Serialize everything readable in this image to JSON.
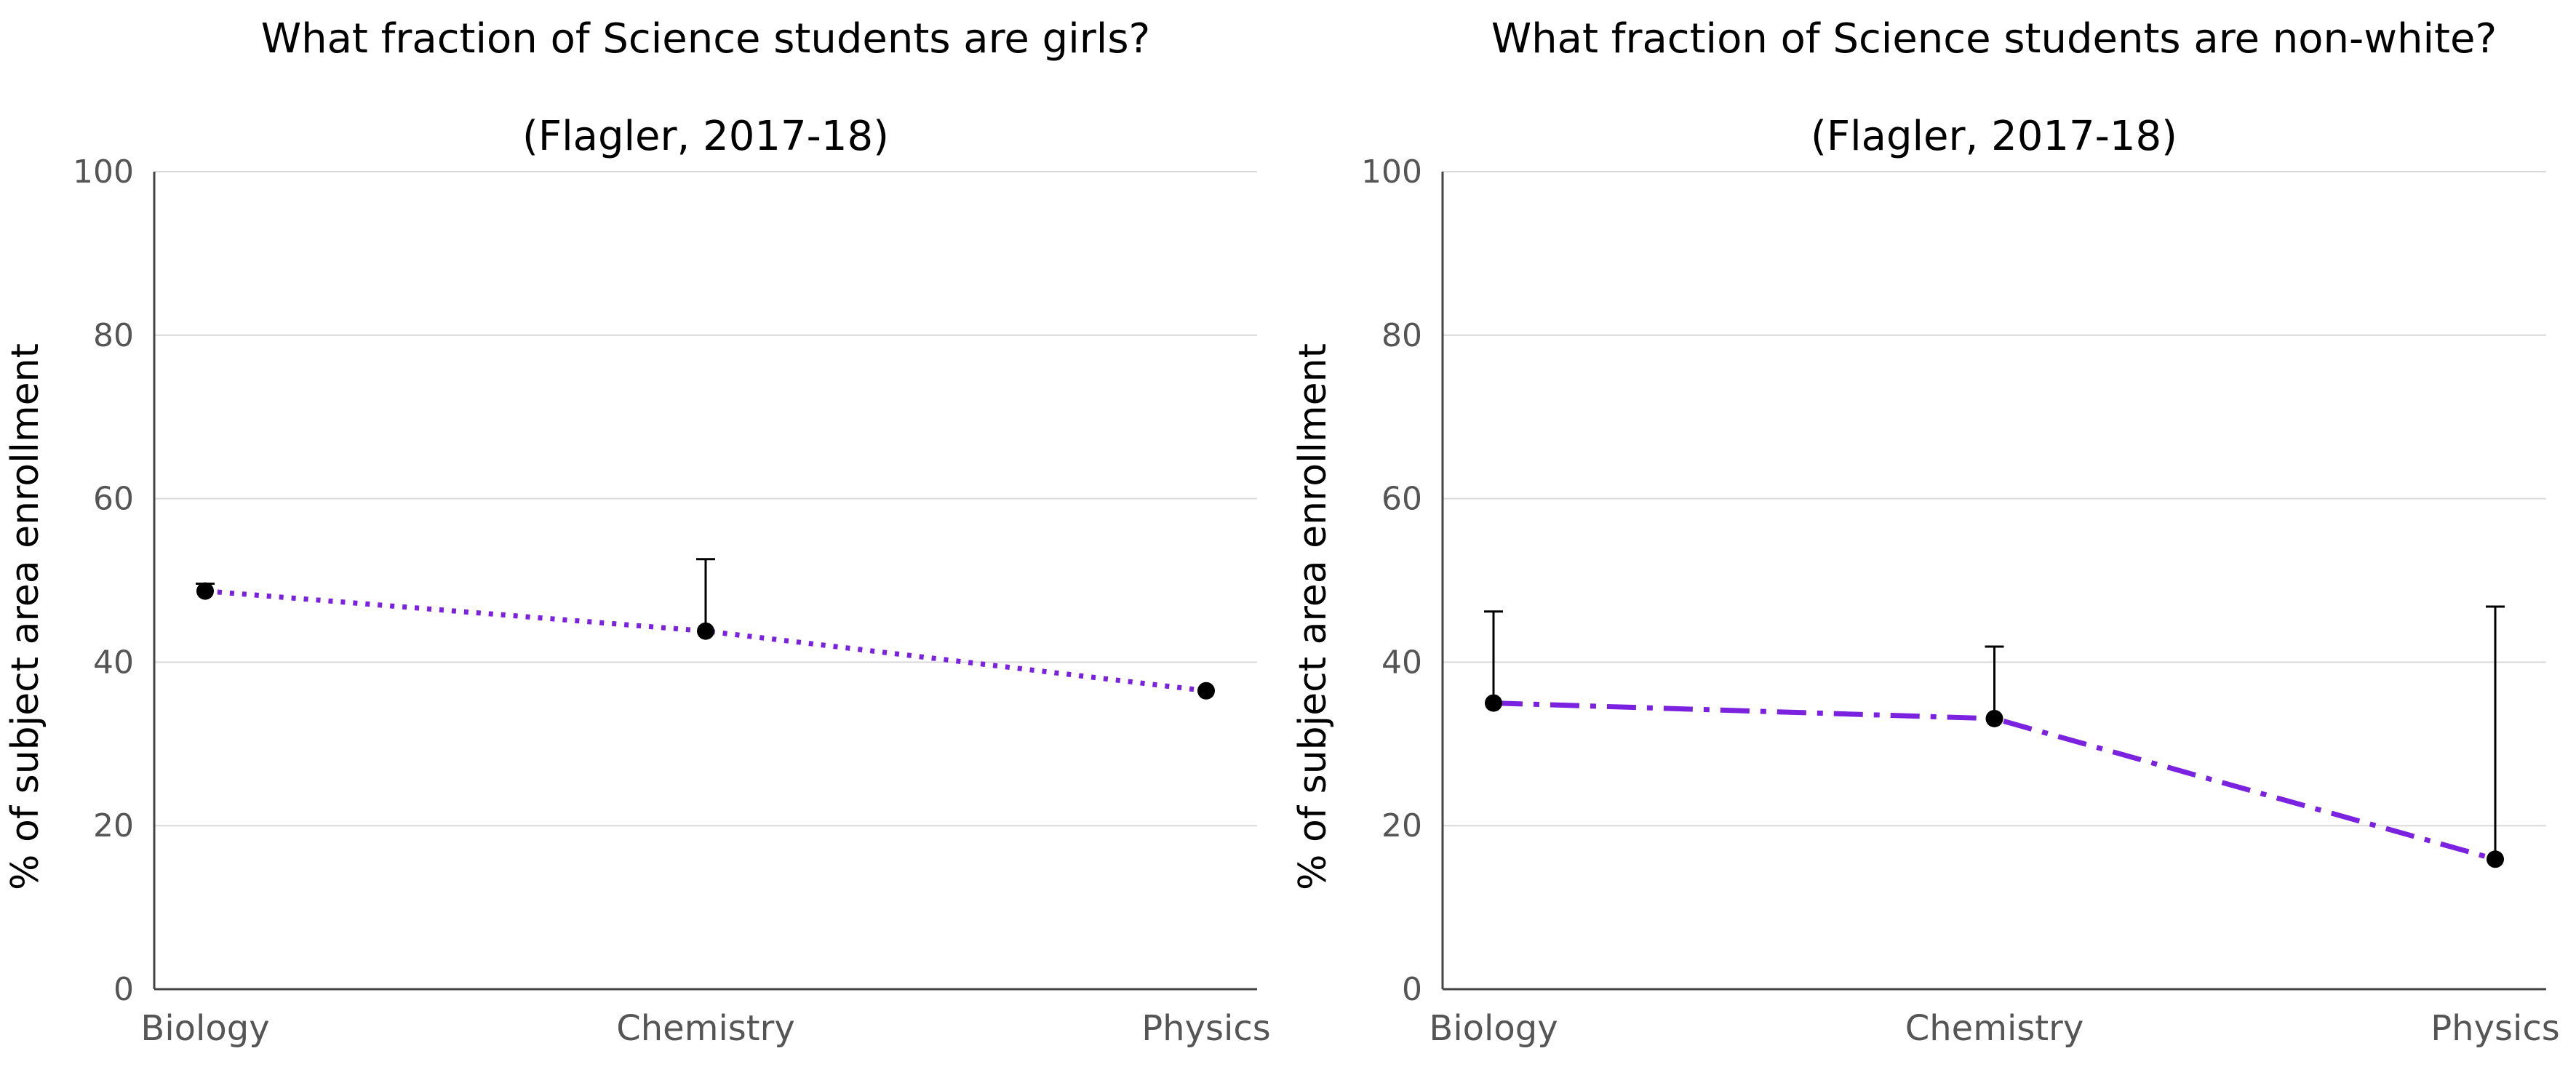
{
  "chart_data": [
    {
      "type": "line",
      "title": "What fraction of Science students are girls?",
      "subtitle": "(Flagler, 2017-18)",
      "xlabel": "",
      "ylabel": "% of subject area enrollment",
      "categories": [
        "Biology",
        "Chemistry",
        "Physics"
      ],
      "yticks": [
        "0",
        "20",
        "40",
        "60",
        "80",
        "100"
      ],
      "ylim": [
        0,
        100
      ],
      "grid": true,
      "series": [
        {
          "values": [
            48.7,
            43.8,
            36.5
          ],
          "error_upper": [
            49.6,
            52.6,
            36.5
          ],
          "color": "#7b22e0",
          "line_style": "dotted"
        }
      ]
    },
    {
      "type": "line",
      "title": "What fraction of Science students are non-white?",
      "subtitle": "(Flagler, 2017-18)",
      "xlabel": "",
      "ylabel": "% of subject area enrollment",
      "categories": [
        "Biology",
        "Chemistry",
        "Physics"
      ],
      "yticks": [
        "0",
        "20",
        "40",
        "60",
        "80",
        "100"
      ],
      "ylim": [
        0,
        100
      ],
      "grid": true,
      "series": [
        {
          "values": [
            35.0,
            33.1,
            15.9
          ],
          "error_upper": [
            46.2,
            41.9,
            46.8
          ],
          "color": "#7b22e0",
          "line_style": "dashdot"
        }
      ]
    }
  ]
}
